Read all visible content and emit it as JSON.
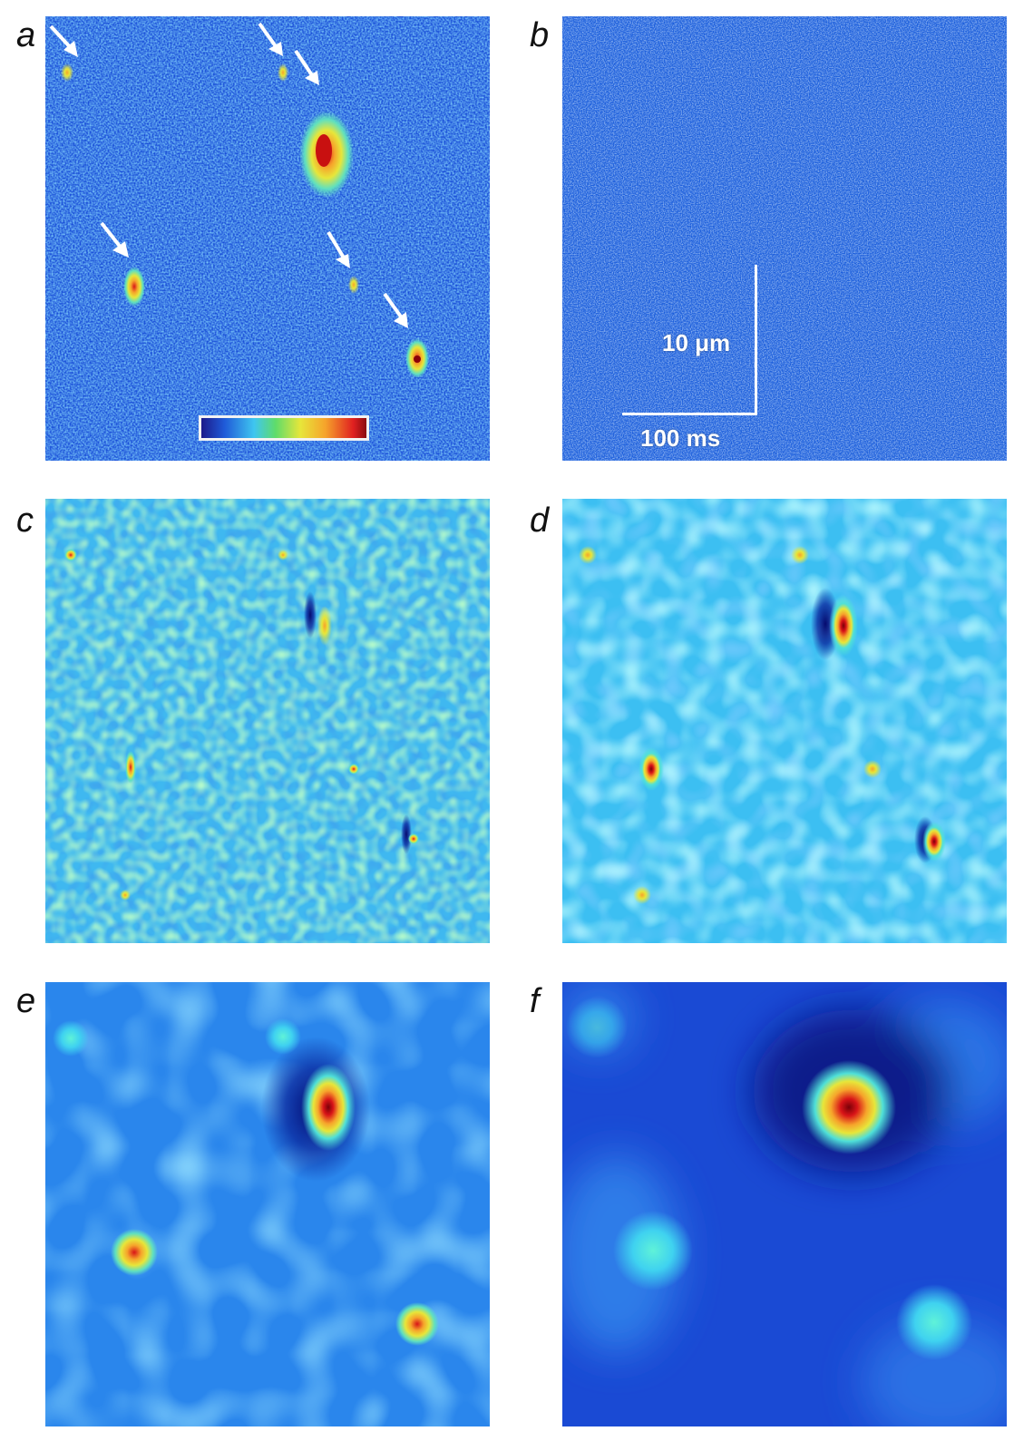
{
  "figure": {
    "panel_labels": [
      "a",
      "b",
      "c",
      "d",
      "e",
      "f"
    ],
    "scale_bar": {
      "vertical_label": "10 μm",
      "horizontal_label": "100 ms"
    },
    "colormap": "jet",
    "colors": {
      "background": "#ffffff",
      "annotation": "#ffffff"
    }
  }
}
